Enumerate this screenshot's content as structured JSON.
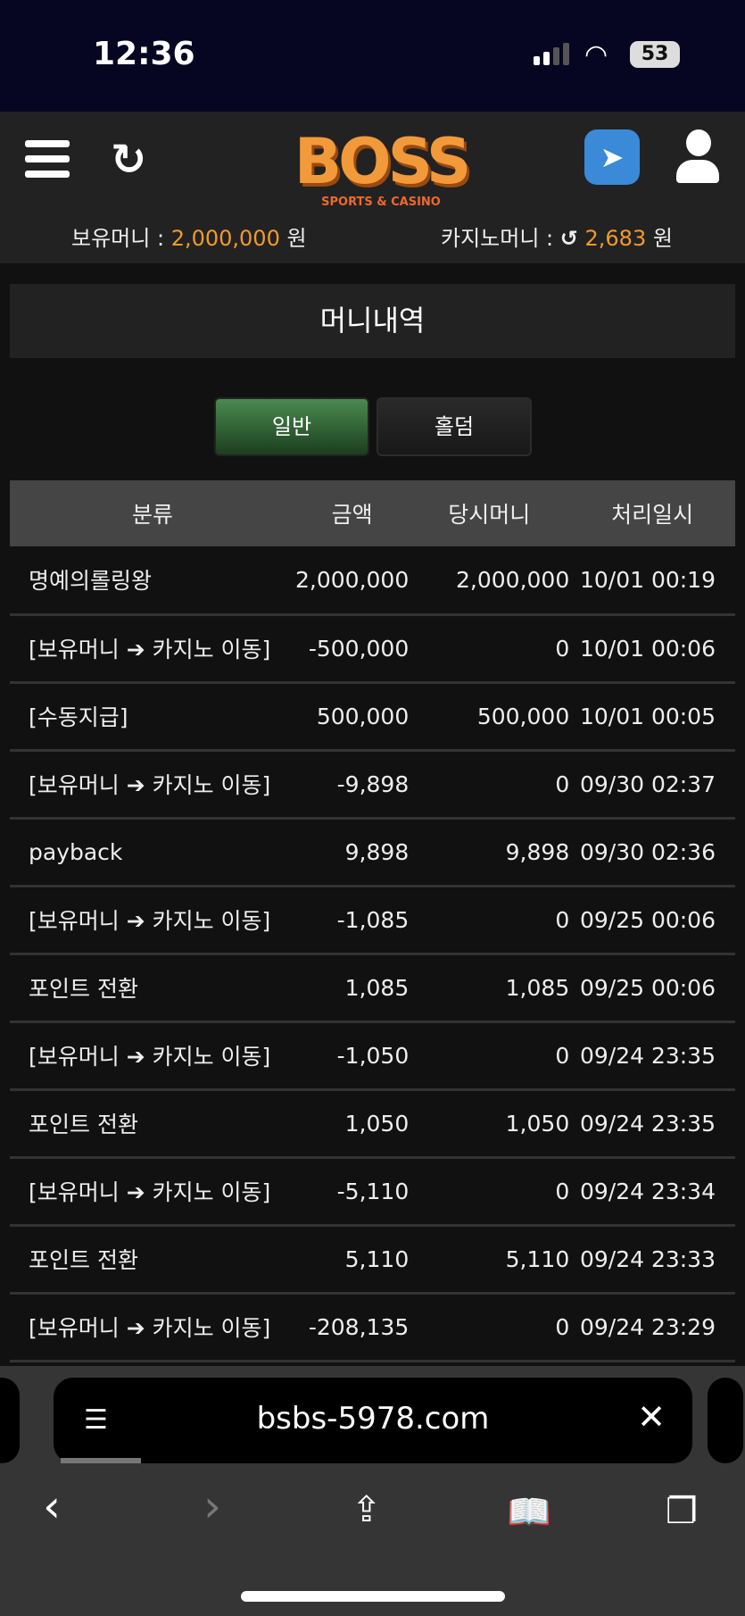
{
  "status_bar": {
    "time": "12:36",
    "battery": "53"
  },
  "header": {
    "logo_text": "BOSS",
    "logo_sub": "SPORTS & CASINO",
    "hold_money_label": "보유머니 :",
    "hold_money_value": "2,000,000",
    "hold_money_unit": "원",
    "casino_money_label": "카지노머니 :",
    "casino_money_value": "2,683",
    "casino_money_unit": "원"
  },
  "page_title": "머니내역",
  "tabs": [
    {
      "label": "일반",
      "active": true
    },
    {
      "label": "홀덤",
      "active": false
    }
  ],
  "table": {
    "headers": [
      "분류",
      "금액",
      "당시머니",
      "처리일시"
    ],
    "rows": [
      [
        "명예의롤링왕",
        "2,000,000",
        "2,000,000",
        "10/01 00:19"
      ],
      [
        "[보유머니 ➔ 카지노 이동]",
        "-500,000",
        "0",
        "10/01 00:06"
      ],
      [
        "[수동지급]",
        "500,000",
        "500,000",
        "10/01 00:05"
      ],
      [
        "[보유머니 ➔ 카지노 이동]",
        "-9,898",
        "0",
        "09/30 02:37"
      ],
      [
        "payback",
        "9,898",
        "9,898",
        "09/30 02:36"
      ],
      [
        "[보유머니 ➔ 카지노 이동]",
        "-1,085",
        "0",
        "09/25 00:06"
      ],
      [
        "포인트 전환",
        "1,085",
        "1,085",
        "09/25 00:06"
      ],
      [
        "[보유머니 ➔ 카지노 이동]",
        "-1,050",
        "0",
        "09/24 23:35"
      ],
      [
        "포인트 전환",
        "1,050",
        "1,050",
        "09/24 23:35"
      ],
      [
        "[보유머니 ➔ 카지노 이동]",
        "-5,110",
        "0",
        "09/24 23:34"
      ],
      [
        "포인트 전환",
        "5,110",
        "5,110",
        "09/24 23:33"
      ],
      [
        "[보유머니 ➔ 카지노 이동]",
        "-208,135",
        "0",
        "09/24 23:29"
      ]
    ]
  },
  "browser": {
    "url": "bsbs-5978.com"
  },
  "colors": {
    "accent": "#f29a2a",
    "tab_active": "#2e6634",
    "table_header": "#454545"
  }
}
